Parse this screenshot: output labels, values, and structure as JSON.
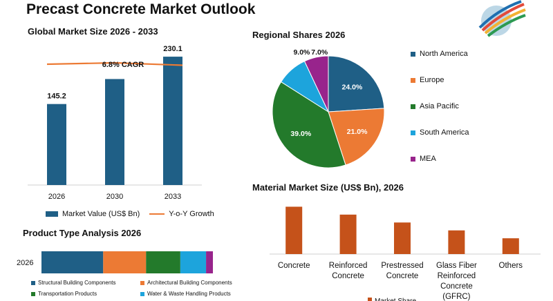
{
  "page": {
    "title": "Precast Concrete Market Outlook"
  },
  "colors": {
    "primary": "#1f5f86",
    "accent": "#ec7a34",
    "bar_orange": "#c5521a"
  },
  "chart_data": [
    {
      "id": "global",
      "type": "bar",
      "title": "Global Market Size 2026 - 2033",
      "categories": [
        "2026",
        "2030",
        "2033"
      ],
      "series": [
        {
          "name": "Market Value (US$ Bn)",
          "values": [
            145.2,
            null,
            230.1
          ],
          "estimated_values": [
            145.2,
            190,
            230.1
          ],
          "color": "#1f5f86"
        }
      ],
      "overlay_line": {
        "name": "Y-o-Y Growth",
        "color": "#ec7a34",
        "values": [
          6.6,
          7.0,
          6.3
        ]
      },
      "annotation": "6.8% CAGR",
      "ylim": [
        0,
        250
      ],
      "legend": "bottom"
    },
    {
      "id": "regional",
      "type": "pie",
      "title": "Regional Shares 2026",
      "labels": [
        "North America",
        "Europe",
        "Asia Pacific",
        "South America",
        "MEA"
      ],
      "values": [
        24.0,
        21.0,
        39.0,
        9.0,
        7.0
      ],
      "display_values": [
        "24.0%",
        "21.0%",
        "39.0%",
        "9.0%",
        "7.0%"
      ],
      "colors": [
        "#1f5f86",
        "#ec7a34",
        "#237a2b",
        "#1da4dc",
        "#98248c"
      ],
      "legend": "right"
    },
    {
      "id": "product",
      "type": "bar",
      "title": "Product Type Analysis 2026",
      "categories": [
        "2026"
      ],
      "series": [
        {
          "name": "Structural Building Components",
          "values": [
            36
          ],
          "color": "#1f5f86"
        },
        {
          "name": "Architectural Building Components",
          "values": [
            25
          ],
          "color": "#ec7a34"
        },
        {
          "name": "Transportation Products",
          "values": [
            20
          ],
          "color": "#237a2b"
        },
        {
          "name": "Water & Waste Handling Products",
          "values": [
            15
          ],
          "color": "#1da4dc"
        },
        {
          "name": "",
          "values": [
            4
          ],
          "color": "#98248c"
        }
      ],
      "stacked": true,
      "orientation": "horizontal",
      "legend": "bottom"
    },
    {
      "id": "material",
      "type": "bar",
      "title": "Material Market Size (US$ Bn), 2026",
      "categories": [
        "Concrete",
        "Reinforced Concrete",
        "Prestressed Concrete",
        "Glass Fiber Reinforced Concrete (GFRC)",
        "Others"
      ],
      "category_lines": [
        [
          "Concrete"
        ],
        [
          "Reinforced",
          "Concrete"
        ],
        [
          "Prestressed",
          "Concrete"
        ],
        [
          "Glass Fiber",
          "Reinforced",
          "Concrete",
          "(GFRC)"
        ],
        [
          "Others"
        ]
      ],
      "series": [
        {
          "name": "Market Share",
          "values": [
            60,
            50,
            40,
            30,
            20
          ],
          "color": "#c5521a"
        }
      ],
      "ylim": [
        0,
        70
      ],
      "legend": "bottom"
    }
  ]
}
